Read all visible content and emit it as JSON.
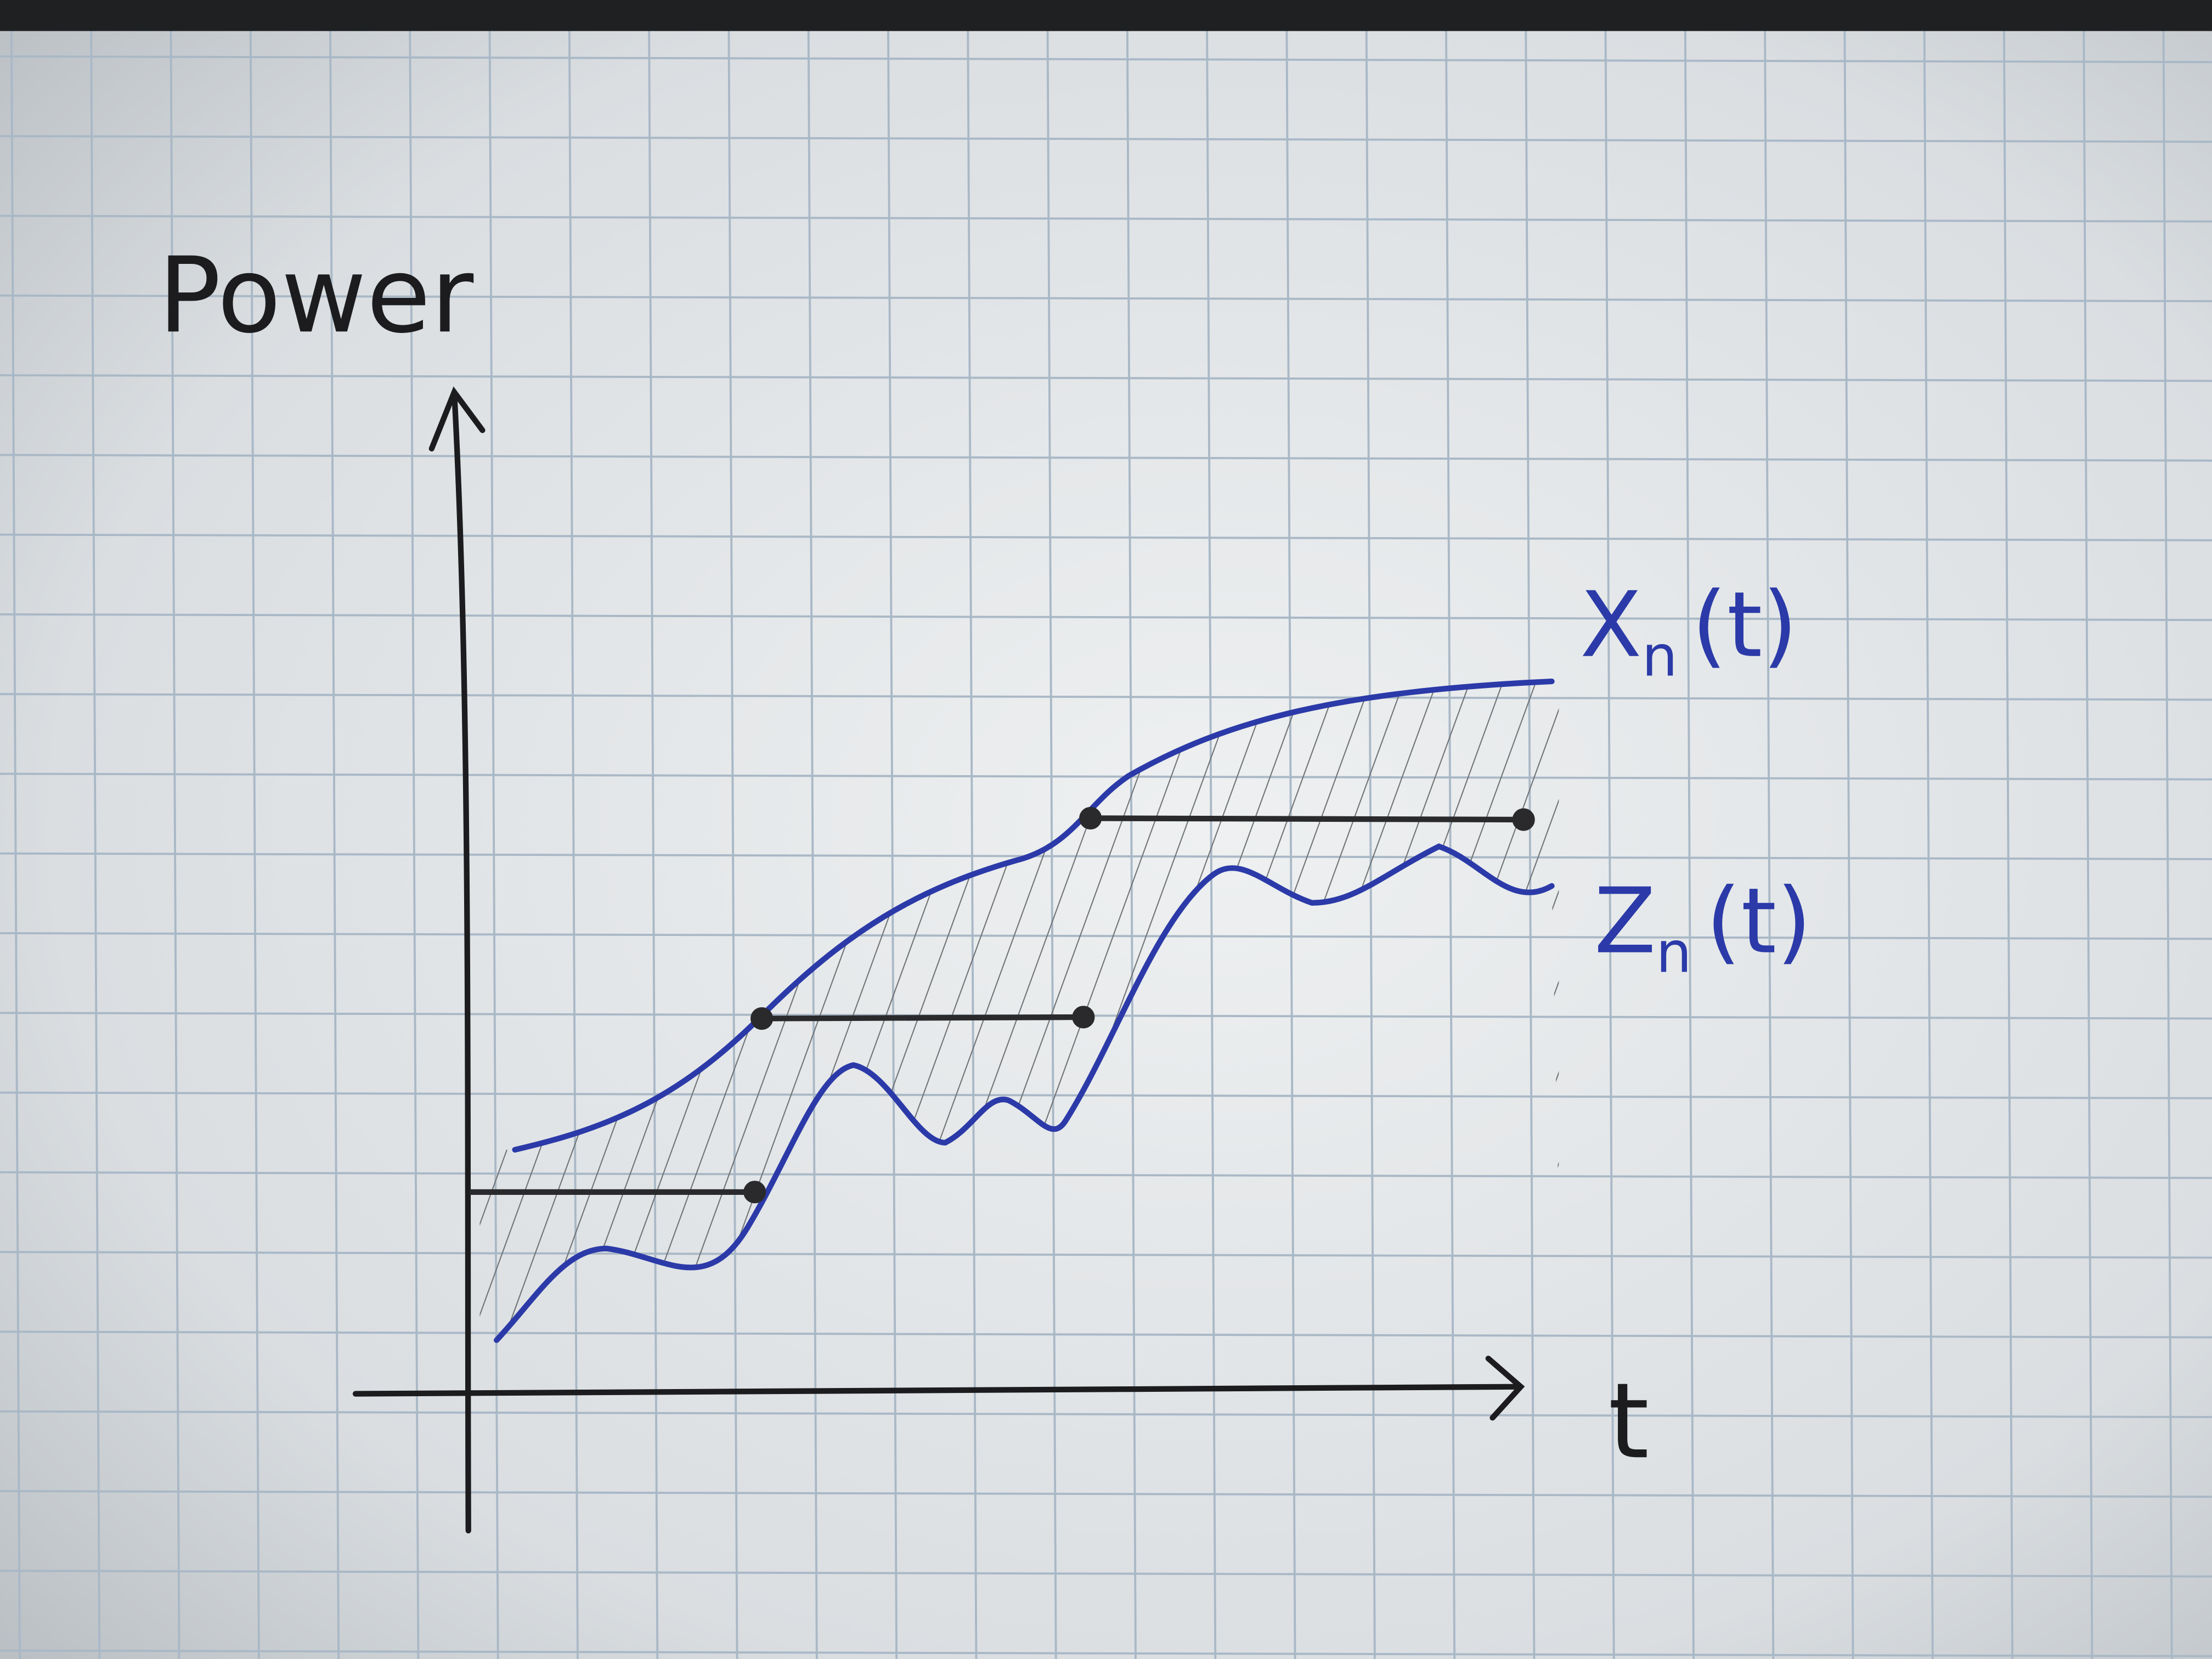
{
  "y_axis_label": "Power",
  "x_axis_label": "t",
  "curves": [
    {
      "symbol": "X",
      "subscript": "n",
      "argument": "(t)"
    },
    {
      "symbol": "Z",
      "subscript": "n",
      "argument": "(t)"
    }
  ]
}
